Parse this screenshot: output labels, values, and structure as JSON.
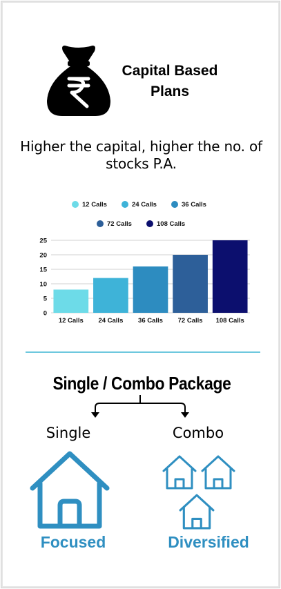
{
  "header": {
    "title": "Capital Based Plans",
    "icon": "money-bag-rupee-icon"
  },
  "tagline": "Higher the capital, higher the no. of stocks P.A.",
  "chart_data": {
    "type": "bar",
    "categories": [
      "12 Calls",
      "24 Calls",
      "36 Calls",
      "72 Calls",
      "108 Calls"
    ],
    "values": [
      8,
      12,
      16,
      20,
      25
    ],
    "colors": [
      "#6ddbe8",
      "#3eb3d8",
      "#2d8cc0",
      "#2d5f99",
      "#0c0f6e"
    ],
    "legend": [
      "12 Calls",
      "24 Calls",
      "36 Calls",
      "72 Calls",
      "108 Calls"
    ],
    "legend_position": "top",
    "yticks": [
      0,
      5,
      10,
      15,
      20,
      25
    ],
    "ylim": [
      0,
      25
    ],
    "grid": true,
    "title": "",
    "xlabel": "",
    "ylabel": ""
  },
  "package": {
    "title": "Single / Combo Package",
    "single": {
      "label": "Single",
      "caption": "Focused",
      "icon": "house-icon"
    },
    "combo": {
      "label": "Combo",
      "caption": "Diversified",
      "icon": "three-houses-icon"
    }
  },
  "colors": {
    "accent": "#2f8fc1",
    "divider": "#6ec8de"
  }
}
